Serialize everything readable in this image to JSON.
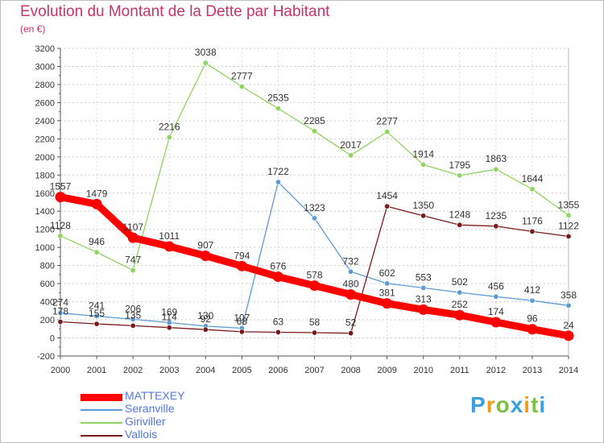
{
  "header": {
    "title": "Evolution du Montant de la Dette par Habitant",
    "subtitle": "(en €)"
  },
  "logo": {
    "text": "Proxiti",
    "letters": [
      "P",
      "r",
      "o",
      "x",
      "i",
      "t",
      "i"
    ],
    "colors": [
      "#3aa0e0",
      "#f59a1b",
      "#7cc142",
      "#3aa0e0",
      "#f59a1b",
      "#7cc142",
      "#3aa0e0"
    ]
  },
  "chart_data": {
    "type": "line",
    "x": [
      "2000",
      "2001",
      "2002",
      "2003",
      "2004",
      "2005",
      "2006",
      "2007",
      "2008",
      "2009",
      "2010",
      "2011",
      "2012",
      "2013",
      "2014"
    ],
    "ylim": [
      -200,
      3200
    ],
    "yticks": [
      -200,
      0,
      200,
      400,
      600,
      800,
      1000,
      1200,
      1400,
      1600,
      1800,
      2000,
      2200,
      2400,
      2600,
      2800,
      3000,
      3200
    ],
    "grid": "horizontal dotted",
    "legend_placement": "bottom-left",
    "series": [
      {
        "name": "MATTEXEY",
        "color": "#ff0000",
        "values": [
          1557,
          1479,
          1107,
          1011,
          907,
          794,
          676,
          578,
          480,
          381,
          313,
          252,
          174,
          96,
          24
        ]
      },
      {
        "name": "Seranville",
        "color": "#5b9bd5",
        "values": [
          274,
          241,
          206,
          169,
          130,
          107,
          1722,
          1323,
          732,
          602,
          553,
          502,
          456,
          412,
          358
        ]
      },
      {
        "name": "Giriviller",
        "color": "#8fd45f",
        "values": [
          1128,
          946,
          747,
          2216,
          3038,
          2777,
          2535,
          2285,
          2017,
          2277,
          1914,
          1795,
          1863,
          1644,
          1355
        ]
      },
      {
        "name": "Vallois",
        "color": "#7b1a1a",
        "values": [
          178,
          155,
          135,
          114,
          92,
          68,
          63,
          58,
          52,
          1454,
          1350,
          1248,
          1235,
          1176,
          1122
        ]
      }
    ]
  }
}
